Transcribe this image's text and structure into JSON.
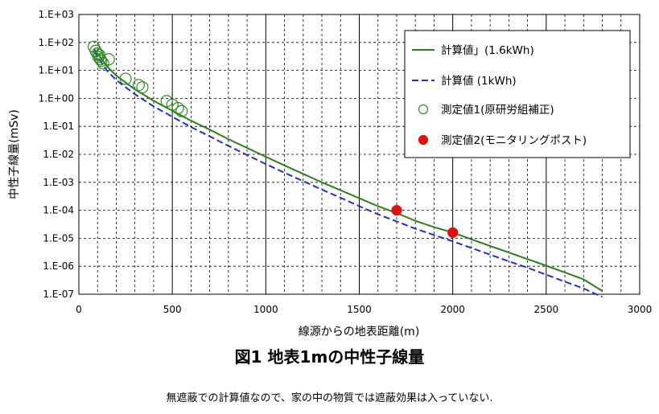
{
  "chart_data": {
    "type": "line",
    "xlabel": "線源からの地表距離(m)",
    "ylabel": "中性子線量(mSv)",
    "xlim": [
      0,
      3000
    ],
    "xticks": [
      0,
      500,
      1000,
      1500,
      2000,
      2500,
      3000
    ],
    "ylim_log10": [
      -7,
      3
    ],
    "yticks": [
      "1.E-07",
      "1.E-06",
      "1.E-05",
      "1.E-04",
      "1.E-03",
      "1.E-02",
      "1.E-01",
      "1.E+00",
      "1.E+01",
      "1.E+02",
      "1.E+03"
    ],
    "scale_y": "log",
    "grid": true,
    "legend_position": "top-right",
    "series": [
      {
        "name": "計算値」(1.6kWh)",
        "kind": "line",
        "style": "solid",
        "color": "#2e7d1e",
        "x": [
          80,
          100,
          150,
          200,
          300,
          400,
          500,
          600,
          700,
          800,
          900,
          1000,
          1100,
          1200,
          1300,
          1400,
          1500,
          1600,
          1700,
          1800,
          1900,
          2000,
          2100,
          2200,
          2300,
          2400,
          2500,
          2600,
          2700,
          2800
        ],
        "y": [
          60,
          40,
          14,
          6.5,
          2.1,
          0.82,
          0.36,
          0.16,
          0.077,
          0.035,
          0.017,
          0.0082,
          0.004,
          0.002,
          0.001,
          0.00052,
          0.00027,
          0.00014,
          8e-05,
          4.2e-05,
          2.5e-05,
          1.6e-05,
          9.2e-06,
          5.3e-06,
          3.1e-06,
          1.8e-06,
          1.05e-06,
          6e-07,
          3.4e-07,
          1.3e-07
        ]
      },
      {
        "name": "計算値 (1kWh)",
        "kind": "line",
        "style": "dashed",
        "color": "#1f2fd0",
        "x": [
          80,
          100,
          150,
          200,
          300,
          400,
          500,
          600,
          700,
          800,
          900,
          1000,
          1100,
          1200,
          1300,
          1400,
          1500,
          1600,
          1700,
          1800,
          1900,
          2000,
          2100,
          2200,
          2300,
          2400,
          2500,
          2600,
          2700,
          2800
        ],
        "y": [
          50,
          30,
          10,
          4.5,
          1.4,
          0.52,
          0.22,
          0.095,
          0.044,
          0.02,
          0.0095,
          0.0045,
          0.0022,
          0.0011,
          0.00055,
          0.00028,
          0.00014,
          7.2e-05,
          4e-05,
          2.2e-05,
          1.3e-05,
          7.8e-06,
          4.5e-06,
          2.6e-06,
          1.5e-06,
          8.8e-07,
          5e-07,
          2.8e-07,
          1.6e-07,
          8e-08
        ]
      },
      {
        "name": "測定値1(原研労組補正)",
        "kind": "scatter",
        "marker": "open-circle",
        "color": "#2e8b22",
        "x": [
          80,
          90,
          100,
          105,
          110,
          115,
          120,
          130,
          160,
          250,
          320,
          340,
          470,
          500,
          530,
          550
        ],
        "y": [
          70,
          50,
          40,
          30,
          35,
          25,
          22,
          18,
          25,
          5,
          3,
          2.5,
          0.8,
          0.6,
          0.45,
          0.35
        ]
      },
      {
        "name": "測定値2(モニタリングポスト)",
        "kind": "scatter",
        "marker": "filled-circle",
        "color": "#e01010",
        "x": [
          1700,
          2000
        ],
        "y": [
          0.0001,
          1.6e-05
        ]
      }
    ]
  },
  "caption": "図1 地表1mの中性子線量",
  "note": "無遮蔽での計算値なので、家の中の物質では遮蔽効果は入っていない."
}
